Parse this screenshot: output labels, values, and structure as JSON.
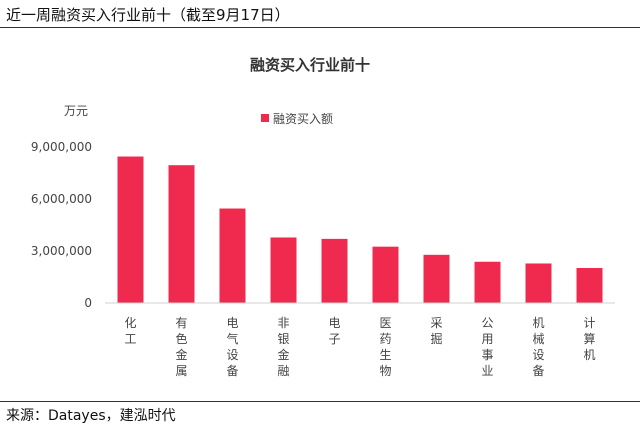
{
  "header": {
    "title": "近一周融资买入行业前十（截至9月17日）"
  },
  "source": "来源：Datayes，建泓时代",
  "colors": {
    "bar": "#f0294f",
    "axis": "#d0d0d0"
  },
  "chart_data": {
    "type": "bar",
    "title": "融资买入行业前十",
    "ylabel": "万元",
    "legend": "融资买入额",
    "legend_position": "top-center",
    "grid": false,
    "ylim": [
      0,
      9000000
    ],
    "yticks": [
      "0",
      "3,000,000",
      "6,000,000",
      "9,000,000"
    ],
    "categories": [
      "化工",
      "有色金属",
      "电气设备",
      "非银金融",
      "电子",
      "医药生物",
      "采掘",
      "公用事业",
      "机械设备",
      "计算机"
    ],
    "series": [
      {
        "name": "融资买入额",
        "values": [
          8450000,
          7950000,
          5450000,
          3780000,
          3700000,
          3250000,
          2780000,
          2380000,
          2280000,
          2020000
        ]
      }
    ]
  }
}
